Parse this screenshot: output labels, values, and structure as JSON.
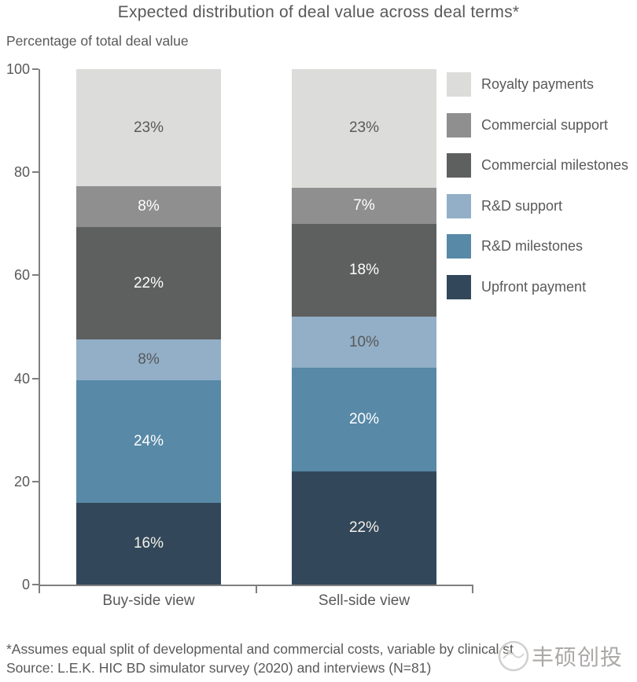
{
  "title": "Expected distribution of deal value across deal terms*",
  "subtitle": "Percentage of total deal value",
  "chart_data": {
    "type": "bar",
    "stacked": true,
    "title": "Expected distribution of deal value across deal terms*",
    "ylabel": "Percentage of total deal value",
    "categories": [
      "Buy-side view",
      "Sell-side view"
    ],
    "series": [
      {
        "name": "Royalty payments",
        "color": "#dcdcda",
        "label_color": "#595959",
        "values": [
          23,
          23
        ]
      },
      {
        "name": "Commercial support",
        "color": "#8f8f8f",
        "label_color": "#ffffff",
        "values": [
          8,
          7
        ]
      },
      {
        "name": "Commercial milestones",
        "color": "#5e5f5f",
        "label_color": "#ffffff",
        "values": [
          22,
          18
        ]
      },
      {
        "name": "R&D support",
        "color": "#92afc7",
        "label_color": "#595959",
        "values": [
          8,
          10
        ]
      },
      {
        "name": "R&D milestones",
        "color": "#5889a7",
        "label_color": "#ffffff",
        "values": [
          24,
          20
        ]
      },
      {
        "name": "Upfront payment",
        "color": "#32485a",
        "label_color": "#f5f1e9",
        "values": [
          16,
          22
        ]
      }
    ],
    "value_suffix": "%",
    "ylim": [
      0,
      100
    ],
    "yticks": [
      100,
      80,
      60,
      40,
      20,
      0
    ],
    "grid": false,
    "legend_position": "top-right",
    "series_order_note": "series listed top-to-bottom as stacked in each bar; legend shows same order"
  },
  "legend": {
    "items": [
      {
        "label": "Royalty payments",
        "color": "#dcdcda"
      },
      {
        "label": "Commercial support",
        "color": "#8f8f8f"
      },
      {
        "label": "Commercial milestones",
        "color": "#5e5f5f"
      },
      {
        "label": "R&D support",
        "color": "#92afc7"
      },
      {
        "label": "R&D milestones",
        "color": "#5889a7"
      },
      {
        "label": "Upfront payment",
        "color": "#32485a"
      }
    ]
  },
  "footnote": "*Assumes equal split of developmental and commercial costs, variable by clinical st",
  "source": "Source: L.E.K. HIC BD simulator survey (2020) and interviews (N=81)",
  "watermark": {
    "text": "丰硕创投"
  },
  "colors": {
    "text": "#595959",
    "axis": "#7f7f7f",
    "background": "#ffffff",
    "watermark": "#aba9a7"
  }
}
